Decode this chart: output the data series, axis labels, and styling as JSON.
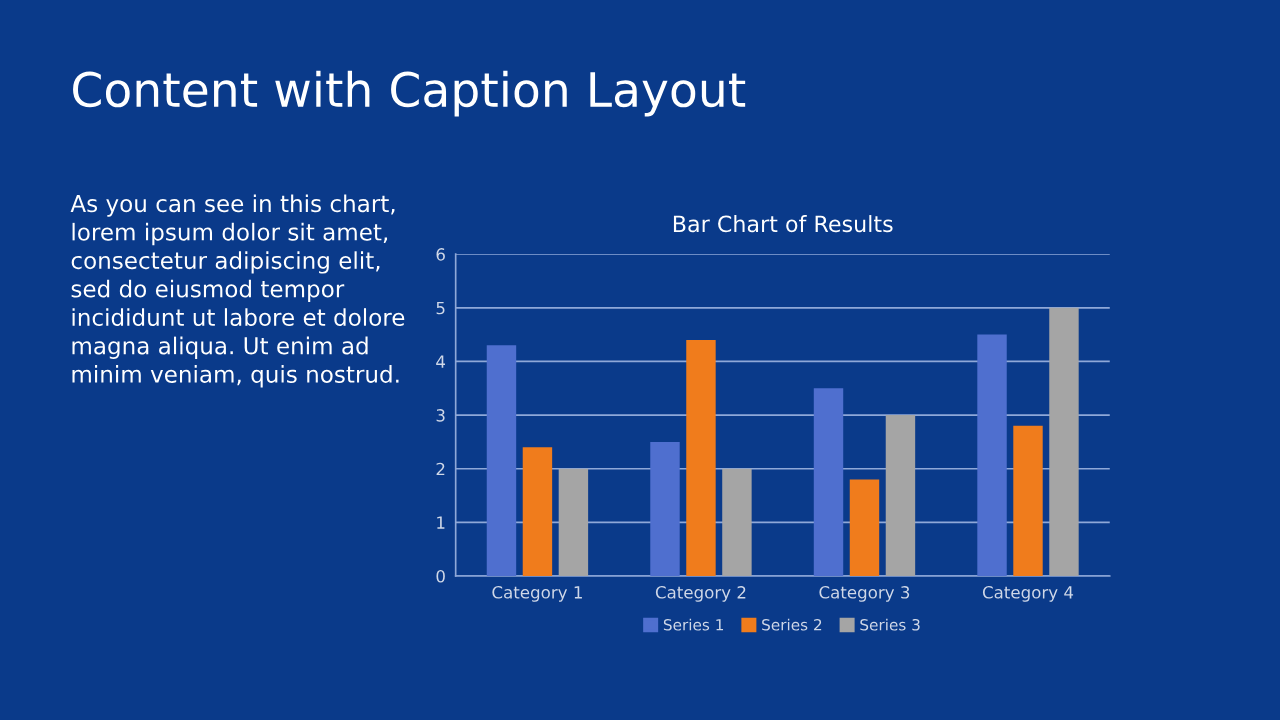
{
  "chart_data": {
    "type": "bar",
    "title": "Bar Chart of Results",
    "categories": [
      "Category 1",
      "Category 2",
      "Category 3",
      "Category 4"
    ],
    "series": [
      {
        "name": "Series 1",
        "color": "#4f6fcf",
        "values": [
          4.3,
          2.5,
          3.5,
          4.5
        ]
      },
      {
        "name": "Series 2",
        "color": "#f07c1c",
        "values": [
          2.4,
          4.4,
          1.8,
          2.8
        ]
      },
      {
        "name": "Series 3",
        "color": "#a5a5a5",
        "values": [
          2,
          2,
          3,
          5
        ]
      }
    ],
    "ylim": [
      0,
      6
    ],
    "yticks": [
      0,
      1,
      2,
      3,
      4,
      5,
      6
    ],
    "grid": "y",
    "legend": "bottom",
    "annotations": [
      "Content with Caption Layout",
      "As you can see in this chart,\nlorem ipsum dolor sit amet,\nconsectetur adipiscing elit,\nsed do eiusmod tempor\nincididunt ut labore et dolore\nmagna aliqua. Ut enim ad\nminim veniam, quis nostrud."
    ]
  }
}
